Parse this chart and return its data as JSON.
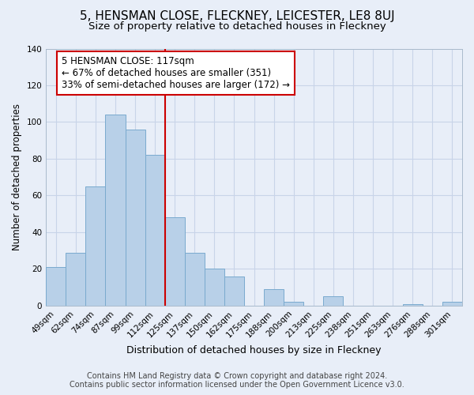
{
  "title": "5, HENSMAN CLOSE, FLECKNEY, LEICESTER, LE8 8UJ",
  "subtitle": "Size of property relative to detached houses in Fleckney",
  "xlabel": "Distribution of detached houses by size in Fleckney",
  "ylabel": "Number of detached properties",
  "bar_labels": [
    "49sqm",
    "62sqm",
    "74sqm",
    "87sqm",
    "99sqm",
    "112sqm",
    "125sqm",
    "137sqm",
    "150sqm",
    "162sqm",
    "175sqm",
    "188sqm",
    "200sqm",
    "213sqm",
    "225sqm",
    "238sqm",
    "251sqm",
    "263sqm",
    "276sqm",
    "288sqm",
    "301sqm"
  ],
  "bar_heights": [
    21,
    29,
    65,
    104,
    96,
    82,
    48,
    29,
    20,
    16,
    0,
    9,
    2,
    0,
    5,
    0,
    0,
    0,
    1,
    0,
    2
  ],
  "bar_color": "#b8d0e8",
  "bar_edge_color": "#7aaace",
  "vline_x": 5.5,
  "vline_color": "#cc0000",
  "annotation_text": "5 HENSMAN CLOSE: 117sqm\n← 67% of detached houses are smaller (351)\n33% of semi-detached houses are larger (172) →",
  "annotation_box_edgecolor": "#cc0000",
  "annotation_box_facecolor": "#ffffff",
  "ylim": [
    0,
    140
  ],
  "yticks": [
    0,
    20,
    40,
    60,
    80,
    100,
    120,
    140
  ],
  "footer1": "Contains HM Land Registry data © Crown copyright and database right 2024.",
  "footer2": "Contains public sector information licensed under the Open Government Licence v3.0.",
  "bg_color": "#e8eef8",
  "plot_bg_color": "#e8eef8",
  "grid_color": "#c8d4e8",
  "title_fontsize": 11,
  "subtitle_fontsize": 9.5,
  "xlabel_fontsize": 9,
  "ylabel_fontsize": 8.5,
  "tick_fontsize": 7.5,
  "footer_fontsize": 7,
  "ann_fontsize": 8.5
}
